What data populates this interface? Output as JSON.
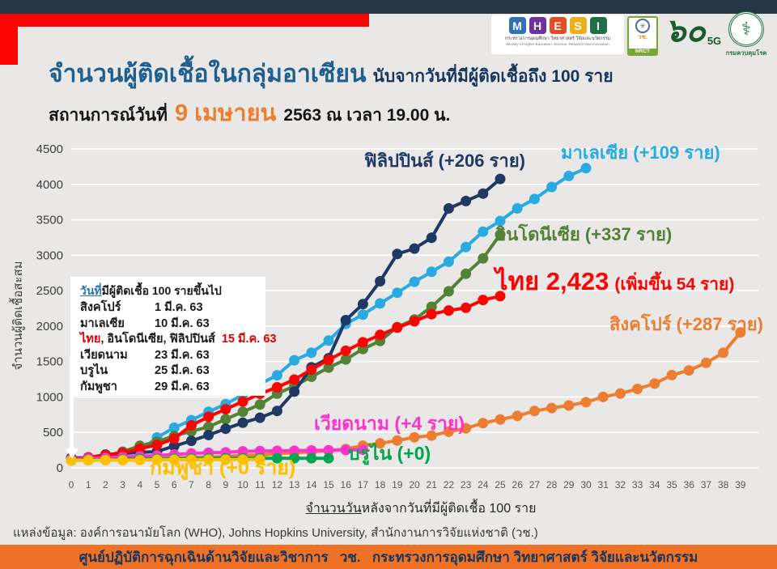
{
  "header": {
    "title_main": "จำนวนผู้ติดเชื้อในกลุ่มอาเซียน",
    "title_sub": "นับจากวันที่มีผู้ติดเชื้อถึง 100 ราย",
    "status_prefix": "สถานการณ์วันที่",
    "status_date": "9 เมษายน",
    "status_suffix": "2563 ณ เวลา 19.00 น."
  },
  "logos": {
    "mhesi_letters": [
      "M",
      "H",
      "E",
      "S",
      "I"
    ],
    "mhesi_line1": "กระทรวงการอุดมศึกษา วิทยาศาสตร์ วิจัยและนวัตกรรม",
    "mhesi_line2": "Ministry of Higher Education, Science, Research and Innovation",
    "nrct_emblem": "✳",
    "nrct_th": "วช.",
    "nrct_en": "NRCT",
    "sixty": "๖๐",
    "five_g": "5G",
    "moph_symbol": "⚕",
    "moph_name": "กรมควบคุมโรค"
  },
  "info_box": {
    "title_underlined": "วันที่",
    "title_rest": "มีผู้ติดเชื้อ 100 รายขึ้นไป",
    "rows": [
      {
        "name": "สิงคโปร์",
        "date": "1 มี.ค. 63"
      },
      {
        "name": "มาเลเซีย",
        "date": "10 มี.ค. 63"
      },
      {
        "name_red": "ไทย",
        "name_rest": ", อินโดนีเซีย, ฟิลิปปินส์",
        "date": "15 มี.ค. 63"
      },
      {
        "name": "เวียดนาม",
        "date": "23 มี.ค. 63"
      },
      {
        "name": "บรูไน",
        "date": "25 มี.ค. 63"
      },
      {
        "name": "กัมพูชา",
        "date": "29 มี.ค. 63"
      }
    ]
  },
  "chart_data": {
    "type": "line",
    "xlabel_underlined": "จำนวนวัน",
    "xlabel_rest": "หลังจากวันที่มีผู้ติดเชื้อ 100 ราย",
    "ylabel": "จำนวนผู้ติดเชื้อสะสม",
    "ylim": [
      0,
      4500
    ],
    "xlim": [
      0,
      39
    ],
    "grid": "horizontal-white",
    "y_ticks": [
      0,
      500,
      1000,
      1500,
      2000,
      2500,
      3000,
      3500,
      4000,
      4500
    ],
    "x_ticks": [
      0,
      1,
      2,
      3,
      4,
      5,
      6,
      7,
      8,
      9,
      10,
      11,
      12,
      13,
      14,
      15,
      16,
      17,
      18,
      19,
      20,
      21,
      22,
      23,
      24,
      25,
      26,
      27,
      28,
      29,
      30,
      31,
      32,
      33,
      34,
      35,
      36,
      37,
      38,
      39
    ],
    "series": [
      {
        "key": "malaysia",
        "label": "มาเลเซีย (+109 ราย)",
        "color": "#29abe2",
        "values": [
          129,
          149,
          158,
          197,
          238,
          428,
          566,
          673,
          790,
          900,
          1030,
          1183,
          1306,
          1518,
          1624,
          1796,
          2031,
          2161,
          2320,
          2470,
          2626,
          2766,
          2908,
          3116,
          3333,
          3483,
          3662,
          3793,
          3963,
          4119,
          4228
        ]
      },
      {
        "key": "indonesia",
        "label": "อินโดนีเซีย (+337 ราย)",
        "color": "#538135",
        "values": [
          117,
          134,
          172,
          227,
          311,
          369,
          450,
          514,
          579,
          686,
          790,
          893,
          1046,
          1155,
          1285,
          1414,
          1528,
          1677,
          1790,
          1986,
          2092,
          2273,
          2491,
          2738,
          2956,
          3293
        ]
      },
      {
        "key": "philippines",
        "label": "ฟิลิปปินส์ (+206 ราย)",
        "color": "#1f3864",
        "values": [
          140,
          142,
          187,
          202,
          217,
          230,
          307,
          380,
          462,
          552,
          636,
          707,
          803,
          1075,
          1418,
          1546,
          2084,
          2311,
          2633,
          3018,
          3094,
          3246,
          3660,
          3764,
          3870,
          4076
        ]
      },
      {
        "key": "thailand",
        "label_main": "ไทย 2,423",
        "label_extra": "(เพิ่มขึ้น 54 ราย)",
        "color": "#fb0404",
        "values": [
          114,
          147,
          177,
          212,
          272,
          322,
          411,
          599,
          721,
          827,
          934,
          1045,
          1136,
          1245,
          1388,
          1524,
          1651,
          1771,
          1875,
          1978,
          2067,
          2169,
          2220,
          2258,
          2369,
          2423
        ]
      },
      {
        "key": "singapore",
        "label": "สิงคโปร์ (+287 ราย)",
        "color": "#ed7d31",
        "values": [
          106,
          108,
          110,
          112,
          117,
          130,
          138,
          150,
          150,
          160,
          178,
          178,
          200,
          212,
          226,
          243,
          266,
          313,
          345,
          385,
          432,
          455,
          509,
          558,
          631,
          683,
          732,
          802,
          844,
          879,
          926,
          1000,
          1049,
          1114,
          1189,
          1309,
          1375,
          1481,
          1623,
          1910
        ]
      },
      {
        "key": "vietnam",
        "label": "เวียดนาม (+4 ราย)",
        "color": "#ff33cc",
        "values": [
          123,
          134,
          141,
          153,
          163,
          174,
          188,
          203,
          212,
          218,
          233,
          237,
          240,
          241,
          245,
          249,
          251,
          255
        ]
      },
      {
        "key": "brunei",
        "label": "บรูไน (+0)",
        "color": "#00a651",
        "values": [
          104,
          114,
          115,
          120,
          126,
          127,
          129,
          131,
          133,
          134,
          135,
          135,
          135,
          135,
          135,
          135
        ]
      },
      {
        "key": "cambodia",
        "label": "กัมพูชา (+0 ราย)",
        "color": "#ffc000",
        "values": [
          103,
          107,
          109,
          109,
          110,
          114,
          114,
          115,
          115,
          115,
          117,
          117
        ]
      }
    ]
  },
  "source": "แหล่งข้อมูล: องค์การอนามัยโลก (WHO), Johns Hopkins University, สำนักงานการวิจัยแห่งชาติ (วช.)",
  "footer": {
    "text": "ศูนย์ปฏิบัติการฉุกเฉินด้านวิจัยและวิชาการ   วช.   กระทรวงการอุดมศึกษา วิทยาศาสตร์ วิจัยและนวัตกรรม"
  }
}
